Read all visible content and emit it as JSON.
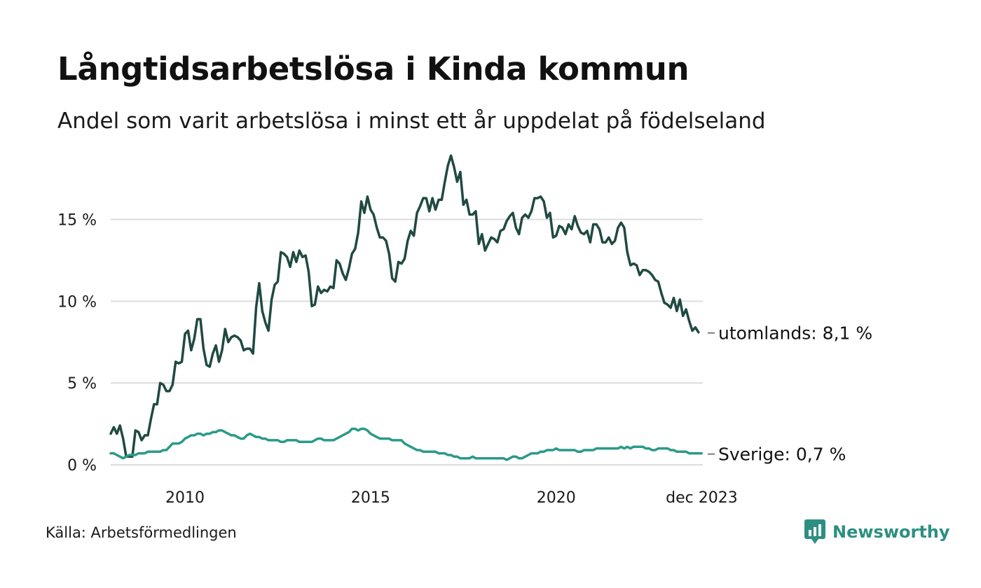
{
  "title": "Långtidsarbetslösa i Kinda kommun",
  "subtitle": "Andel som varit arbetslösa i minst ett år uppdelat på födelseland",
  "source": "Källa: Arbetsförmedlingen",
  "brand": {
    "name": "Newsworthy",
    "icon": "newsworthy-logo-icon"
  },
  "colors": {
    "utomlands": "#1f4a41",
    "sverige": "#2a9a88",
    "grid": "#dddddd",
    "brand": "#2d8f82"
  },
  "chart_data": {
    "type": "line",
    "title": "Långtidsarbetslösa i Kinda kommun",
    "xlabel": "",
    "ylabel": "",
    "x_start": 2008.0,
    "x_step_years": 0.08333,
    "xlim": [
      2008.0,
      2023.95
    ],
    "ylim": [
      0,
      19
    ],
    "y_ticks": [
      0,
      5,
      10,
      15
    ],
    "y_tick_labels": [
      "0 %",
      "5 %",
      "10 %",
      "15 %"
    ],
    "x_ticks": [
      2010,
      2015,
      2020,
      2023.92
    ],
    "x_tick_labels": [
      "2010",
      "2015",
      "2020",
      "dec 2023"
    ],
    "series": [
      {
        "name": "utomlands",
        "end_label": "utomlands: 8,1 %",
        "values": [
          1.9,
          2.3,
          1.9,
          2.4,
          1.6,
          0.5,
          0.5,
          0.5,
          2.1,
          2.0,
          1.5,
          1.8,
          1.8,
          2.8,
          3.7,
          3.7,
          5.0,
          4.9,
          4.5,
          4.5,
          4.9,
          6.3,
          6.2,
          6.3,
          8.0,
          8.2,
          7.0,
          7.7,
          8.9,
          8.9,
          7.1,
          6.1,
          6.0,
          6.8,
          7.3,
          6.3,
          7.0,
          8.3,
          7.5,
          7.8,
          7.9,
          7.8,
          7.6,
          7.0,
          7.1,
          7.1,
          6.8,
          9.6,
          11.1,
          9.4,
          8.7,
          8.2,
          10.1,
          11.0,
          11.2,
          13.0,
          12.9,
          12.7,
          12.1,
          13.0,
          12.4,
          13.1,
          12.7,
          12.8,
          11.8,
          9.7,
          9.8,
          10.9,
          10.5,
          10.7,
          10.6,
          10.9,
          10.8,
          12.5,
          12.3,
          11.7,
          11.3,
          12.0,
          12.9,
          13.2,
          14.2,
          16.1,
          15.4,
          16.4,
          15.6,
          15.3,
          14.5,
          13.9,
          13.9,
          13.7,
          12.9,
          11.4,
          11.2,
          12.4,
          12.3,
          12.6,
          13.7,
          14.3,
          14.0,
          15.4,
          15.8,
          16.3,
          16.3,
          15.5,
          16.3,
          15.6,
          16.2,
          16.2,
          17.3,
          18.3,
          18.9,
          18.2,
          17.3,
          17.9,
          15.9,
          16.2,
          15.3,
          15.3,
          15.5,
          13.5,
          14.1,
          13.1,
          13.5,
          13.9,
          13.8,
          13.6,
          14.3,
          14.4,
          14.9,
          15.2,
          15.4,
          14.5,
          14.1,
          15.1,
          15.3,
          15.1,
          15.5,
          16.3,
          16.3,
          16.4,
          16.1,
          15.1,
          15.4,
          13.9,
          14.0,
          14.6,
          14.5,
          14.1,
          14.7,
          14.4,
          15.2,
          14.6,
          14.2,
          14.1,
          14.3,
          13.6,
          14.7,
          14.7,
          14.4,
          13.6,
          13.6,
          13.9,
          13.5,
          13.7,
          14.5,
          14.8,
          14.5,
          13.0,
          12.2,
          12.3,
          12.2,
          11.6,
          11.9,
          11.9,
          11.8,
          11.6,
          11.3,
          11.2,
          10.5,
          9.9,
          9.8,
          9.6,
          10.2,
          9.4,
          10.1,
          9.1,
          9.5,
          8.8,
          8.2,
          8.4,
          8.1
        ]
      },
      {
        "name": "Sverige",
        "end_label": "Sverige: 0,7 %",
        "values": [
          0.7,
          0.7,
          0.6,
          0.5,
          0.4,
          0.5,
          0.6,
          0.6,
          0.6,
          0.7,
          0.7,
          0.7,
          0.8,
          0.8,
          0.8,
          0.8,
          0.8,
          0.9,
          0.9,
          1.1,
          1.3,
          1.3,
          1.3,
          1.4,
          1.6,
          1.7,
          1.8,
          1.8,
          1.9,
          1.9,
          1.8,
          1.9,
          1.9,
          2.0,
          2.0,
          2.1,
          2.1,
          2.0,
          1.9,
          1.8,
          1.8,
          1.7,
          1.6,
          1.6,
          1.8,
          1.9,
          1.8,
          1.7,
          1.7,
          1.6,
          1.6,
          1.5,
          1.5,
          1.5,
          1.5,
          1.4,
          1.4,
          1.5,
          1.5,
          1.5,
          1.5,
          1.4,
          1.4,
          1.4,
          1.4,
          1.4,
          1.5,
          1.6,
          1.6,
          1.5,
          1.5,
          1.5,
          1.5,
          1.6,
          1.7,
          1.8,
          1.9,
          2.0,
          2.2,
          2.2,
          2.1,
          2.2,
          2.2,
          2.1,
          1.9,
          1.8,
          1.7,
          1.6,
          1.6,
          1.6,
          1.6,
          1.5,
          1.5,
          1.5,
          1.5,
          1.3,
          1.2,
          1.1,
          1.0,
          0.9,
          0.9,
          0.8,
          0.8,
          0.8,
          0.8,
          0.8,
          0.7,
          0.7,
          0.7,
          0.6,
          0.6,
          0.5,
          0.5,
          0.4,
          0.4,
          0.4,
          0.4,
          0.5,
          0.4,
          0.4,
          0.4,
          0.4,
          0.4,
          0.4,
          0.4,
          0.4,
          0.4,
          0.4,
          0.3,
          0.4,
          0.5,
          0.5,
          0.4,
          0.4,
          0.5,
          0.6,
          0.7,
          0.7,
          0.7,
          0.8,
          0.8,
          0.9,
          0.9,
          0.9,
          1.0,
          0.9,
          0.9,
          0.9,
          0.9,
          0.9,
          0.9,
          0.8,
          0.8,
          0.9,
          0.9,
          0.9,
          0.9,
          1.0,
          1.0,
          1.0,
          1.0,
          1.0,
          1.0,
          1.0,
          1.0,
          1.1,
          1.0,
          1.1,
          1.0,
          1.1,
          1.1,
          1.1,
          1.1,
          1.0,
          1.0,
          0.9,
          0.9,
          1.0,
          1.0,
          1.0,
          1.0,
          0.9,
          0.9,
          0.8,
          0.8,
          0.8,
          0.8,
          0.7,
          0.7,
          0.7,
          0.7,
          0.7
        ]
      }
    ]
  }
}
